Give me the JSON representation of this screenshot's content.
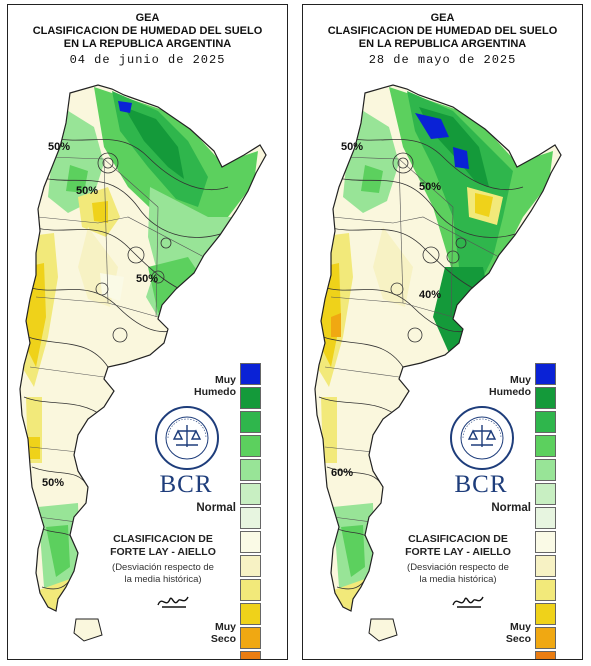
{
  "panels": [
    {
      "source": "GEA",
      "title_line1": "CLASIFICACION DE HUMEDAD DEL SUELO",
      "title_line2": "EN LA REPUBLICA ARGENTINA",
      "date": "04 de junio de 2025",
      "contour_labels": [
        "50%",
        "50%",
        "50%",
        "50%"
      ]
    },
    {
      "source": "GEA",
      "title_line1": "CLASIFICACION DE HUMEDAD DEL SUELO",
      "title_line2": "EN LA REPUBLICA ARGENTINA",
      "date": "28 de mayo de 2025",
      "contour_labels": [
        "50%",
        "50%",
        "40%",
        "60%"
      ]
    }
  ],
  "legend": {
    "top_label_line1": "Muy",
    "top_label_line2": "Humedo",
    "middle_label": "Normal",
    "bottom_label_line1": "Muy",
    "bottom_label_line2": "Seco",
    "colors": [
      "#0a22d6",
      "#149a3a",
      "#2fb64c",
      "#5cd05e",
      "#98e497",
      "#c8efc2",
      "#e7f5e0",
      "#fafae6",
      "#f7f2c4",
      "#f2e97a",
      "#efd21a",
      "#f0a812",
      "#ea7d12",
      "#f0241a"
    ]
  },
  "logo": {
    "brand": "BCR",
    "seal_text": "BOLSA DE COMERCIO DE ROSARIO"
  },
  "classification": {
    "line1": "CLASIFICACION DE",
    "line2": "FORTE LAY - AIELLO",
    "desc_line1": "(Desviación respecto de",
    "desc_line2": "la media histórica)"
  }
}
